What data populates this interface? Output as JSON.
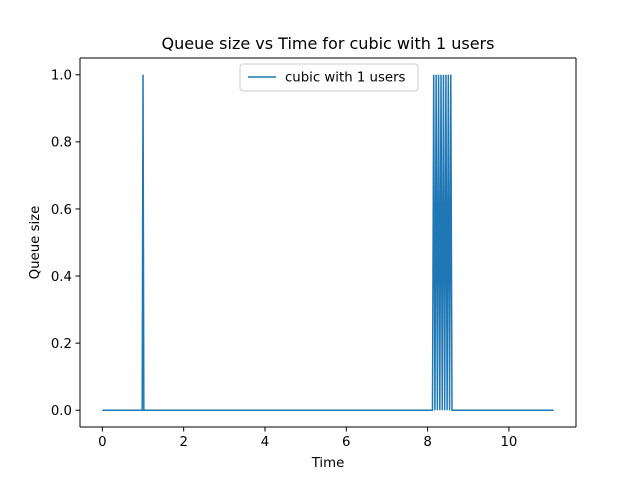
{
  "chart_data": {
    "type": "line",
    "title": "Queue size vs Time for cubic with 1 users",
    "xlabel": "Time",
    "ylabel": "Queue size",
    "xlim": [
      -0.55,
      11.65
    ],
    "ylim": [
      -0.05,
      1.05
    ],
    "xticks": [
      0,
      2,
      4,
      6,
      8,
      10
    ],
    "yticks": [
      0.0,
      0.2,
      0.4,
      0.6,
      0.8,
      1.0
    ],
    "xtick_labels": [
      "0",
      "2",
      "4",
      "6",
      "8",
      "10"
    ],
    "ytick_labels": [
      "0.0",
      "0.2",
      "0.4",
      "0.6",
      "0.8",
      "1.0"
    ],
    "grid": false,
    "legend_position": "upper center",
    "series": [
      {
        "name": "cubic with 1 users",
        "color": "#1f77b4",
        "x": [
          0.0,
          0.98,
          1.0,
          1.02,
          1.04,
          8.12,
          8.15,
          8.18,
          8.21,
          8.24,
          8.27,
          8.3,
          8.33,
          8.36,
          8.39,
          8.42,
          8.45,
          8.48,
          8.51,
          8.54,
          8.57,
          8.6,
          11.1
        ],
        "y": [
          0.0,
          0.0,
          1.0,
          0.0,
          0.0,
          0.0,
          1.0,
          0.0,
          1.0,
          0.0,
          1.0,
          0.0,
          1.0,
          0.0,
          1.0,
          0.0,
          1.0,
          0.0,
          1.0,
          0.0,
          1.0,
          0.0,
          0.0
        ]
      }
    ]
  }
}
